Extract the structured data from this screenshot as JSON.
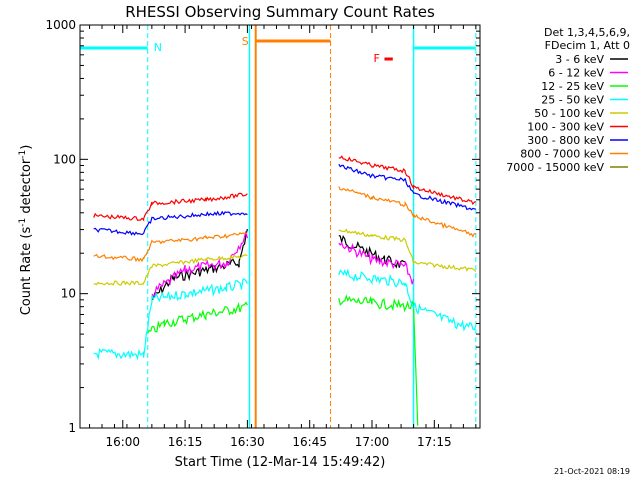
{
  "chart_data": {
    "type": "line",
    "title": "RHESSI Observing Summary Count Rates",
    "xlabel": "Start Time (12-Mar-14 15:49:42)",
    "ylabel_prefix": "Count Rate (s",
    "ylabel_sup1": "-1",
    "ylabel_mid": " detector",
    "ylabel_sup2": "-1",
    "ylabel_suffix": ")",
    "y_scale": "log",
    "ylim": [
      1,
      1000
    ],
    "xlim": [
      "15:49:42",
      "17:26:00"
    ],
    "y_ticks": [
      {
        "value": 1,
        "label": "1"
      },
      {
        "value": 10,
        "label": "10"
      },
      {
        "value": 100,
        "label": "100"
      },
      {
        "value": 1000,
        "label": "1000"
      }
    ],
    "x_ticks": [
      {
        "value": "16:00",
        "label": "16:00"
      },
      {
        "value": "16:15",
        "label": "16:15"
      },
      {
        "value": "16:30",
        "label": "16:30"
      },
      {
        "value": "16:45",
        "label": "16:45"
      },
      {
        "value": "17:00",
        "label": "17:00"
      },
      {
        "value": "17:15",
        "label": "17:15"
      }
    ],
    "legend_header": [
      "Det 1,3,4,5,6,9,",
      "FDecim 1, Att 0"
    ],
    "legend_position": "right",
    "series": [
      {
        "name": "3 - 6 keV",
        "color": "#000000",
        "segments": [
          [
            [
              "15:53",
              null
            ],
            [
              "16:06",
              null
            ]
          ],
          [
            [
              "16:07",
              9
            ],
            [
              "16:12",
              13
            ],
            [
              "16:20",
              15
            ],
            [
              "16:28",
              17
            ],
            [
              "16:30",
              30
            ]
          ],
          [
            [
              "16:52",
              26
            ],
            [
              "16:58",
              21
            ],
            [
              "17:03",
              18
            ],
            [
              "17:08",
              16
            ]
          ]
        ]
      },
      {
        "name": "6 - 12 keV",
        "color": "#ff00ff",
        "segments": [
          [
            [
              "16:07",
              10
            ],
            [
              "16:15",
              15
            ],
            [
              "16:25",
              17
            ],
            [
              "16:30",
              28
            ]
          ],
          [
            [
              "16:52",
              24
            ],
            [
              "17:00",
              18
            ],
            [
              "17:08",
              16
            ],
            [
              "17:10",
              12
            ]
          ]
        ]
      },
      {
        "name": "12 - 25 keV",
        "color": "#00ff00",
        "segments": [
          [
            [
              "16:06",
              5
            ],
            [
              "16:10",
              6
            ],
            [
              "16:20",
              7
            ],
            [
              "16:30",
              8
            ]
          ],
          [
            [
              "16:52",
              9
            ],
            [
              "17:00",
              8.5
            ],
            [
              "17:10",
              8
            ],
            [
              "17:11",
              1
            ]
          ]
        ]
      },
      {
        "name": "25 - 50 keV",
        "color": "#00ffff",
        "segments": [
          [
            [
              "15:53",
              3.6
            ],
            [
              "16:05",
              3.5
            ],
            [
              "16:07",
              9
            ],
            [
              "16:15",
              10
            ],
            [
              "16:25",
              11
            ],
            [
              "16:30",
              12
            ]
          ],
          [
            [
              "16:52",
              14
            ],
            [
              "17:00",
              13
            ],
            [
              "17:08",
              12
            ],
            [
              "17:10",
              8
            ],
            [
              "17:20",
              6
            ],
            [
              "17:25",
              5.5
            ]
          ]
        ]
      },
      {
        "name": "50 - 100 keV",
        "color": "#cccc00",
        "segments": [
          [
            [
              "15:53",
              12
            ],
            [
              "16:05",
              12
            ],
            [
              "16:07",
              16
            ],
            [
              "16:20",
              18
            ],
            [
              "16:30",
              19
            ]
          ],
          [
            [
              "16:52",
              30
            ],
            [
              "17:00",
              27
            ],
            [
              "17:08",
              25
            ],
            [
              "17:10",
              17
            ],
            [
              "17:25",
              15
            ]
          ]
        ]
      },
      {
        "name": "100 - 300 keV",
        "color": "#ff0000",
        "segments": [
          [
            [
              "15:53",
              38
            ],
            [
              "16:05",
              36
            ],
            [
              "16:07",
              47
            ],
            [
              "16:20",
              50
            ],
            [
              "16:30",
              55
            ]
          ],
          [
            [
              "16:52",
              105
            ],
            [
              "17:00",
              90
            ],
            [
              "17:08",
              82
            ],
            [
              "17:10",
              62
            ],
            [
              "17:25",
              47
            ]
          ]
        ]
      },
      {
        "name": "300 - 800 keV",
        "color": "#0000ff",
        "segments": [
          [
            [
              "15:53",
              30
            ],
            [
              "16:05",
              28
            ],
            [
              "16:07",
              36
            ],
            [
              "16:20",
              39
            ],
            [
              "16:30",
              40
            ]
          ],
          [
            [
              "16:52",
              90
            ],
            [
              "17:00",
              75
            ],
            [
              "17:08",
              70
            ],
            [
              "17:10",
              55
            ],
            [
              "17:25",
              42
            ]
          ]
        ]
      },
      {
        "name": "800 - 7000 keV",
        "color": "#ff8000",
        "segments": [
          [
            [
              "15:53",
              19
            ],
            [
              "16:05",
              18
            ],
            [
              "16:07",
              24
            ],
            [
              "16:20",
              26
            ],
            [
              "16:30",
              28
            ]
          ],
          [
            [
              "16:52",
              62
            ],
            [
              "17:00",
              52
            ],
            [
              "17:08",
              46
            ],
            [
              "17:10",
              38
            ],
            [
              "17:25",
              27
            ]
          ]
        ]
      },
      {
        "name": "7000 - 15000 keV",
        "color": "#808000",
        "segments": []
      }
    ],
    "annotations": [
      {
        "label": "N",
        "color": "#00ffff"
      },
      {
        "label": "S",
        "color": "#ff8000"
      },
      {
        "label": "F",
        "color": "#ff0000"
      }
    ]
  },
  "footer_timestamp": "21-Oct-2021 08:19"
}
